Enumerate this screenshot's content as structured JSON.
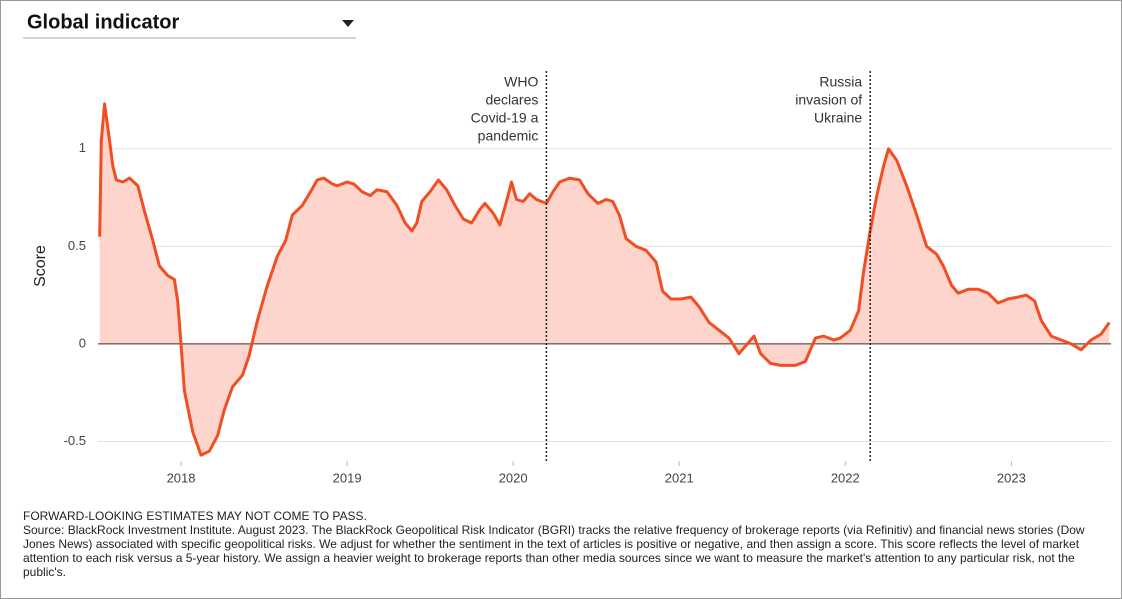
{
  "header": {
    "title": "Global indicator"
  },
  "chart_data": {
    "type": "line",
    "ylabel": "Score",
    "color": "#f04e23",
    "fill": "#fdd5cc",
    "grid": true,
    "xlim": [
      2017.5,
      2023.6
    ],
    "xticks": [
      2018,
      2019,
      2020,
      2021,
      2022,
      2023
    ],
    "ylim": [
      -0.6,
      1.45
    ],
    "yticks": [
      -0.5,
      0,
      0.5,
      1
    ],
    "x": [
      2017.51,
      2017.52,
      2017.54,
      2017.57,
      2017.59,
      2017.61,
      2017.65,
      2017.69,
      2017.74,
      2017.78,
      2017.83,
      2017.87,
      2017.92,
      2017.96,
      2017.98,
      2018.0,
      2018.02,
      2018.07,
      2018.12,
      2018.17,
      2018.22,
      2018.26,
      2018.31,
      2018.37,
      2018.41,
      2018.46,
      2018.52,
      2018.58,
      2018.63,
      2018.67,
      2018.73,
      2018.78,
      2018.82,
      2018.86,
      2018.91,
      2018.94,
      2019.0,
      2019.04,
      2019.09,
      2019.14,
      2019.18,
      2019.24,
      2019.3,
      2019.35,
      2019.39,
      2019.42,
      2019.45,
      2019.5,
      2019.55,
      2019.6,
      2019.65,
      2019.7,
      2019.75,
      2019.8,
      2019.83,
      2019.88,
      2019.92,
      2019.96,
      2019.99,
      2020.02,
      2020.06,
      2020.1,
      2020.14,
      2020.2,
      2020.24,
      2020.28,
      2020.34,
      2020.4,
      2020.45,
      2020.51,
      2020.56,
      2020.6,
      2020.64,
      2020.68,
      2020.74,
      2020.8,
      2020.86,
      2020.9,
      2020.95,
      2021.01,
      2021.07,
      2021.12,
      2021.18,
      2021.24,
      2021.3,
      2021.36,
      2021.4,
      2021.45,
      2021.49,
      2021.55,
      2021.61,
      2021.7,
      2021.76,
      2021.82,
      2021.87,
      2021.93,
      2021.97,
      2022.03,
      2022.08,
      2022.11,
      2022.15,
      2022.19,
      2022.23,
      2022.26,
      2022.31,
      2022.37,
      2022.43,
      2022.49,
      2022.55,
      2022.59,
      2022.64,
      2022.68,
      2022.74,
      2022.8,
      2022.86,
      2022.92,
      2022.98,
      2023.04,
      2023.09,
      2023.14,
      2023.18,
      2023.24,
      2023.3,
      2023.36,
      2023.42,
      2023.48,
      2023.54,
      2023.59
    ],
    "values": [
      0.55,
      1.04,
      1.23,
      1.04,
      0.91,
      0.84,
      0.83,
      0.85,
      0.81,
      0.68,
      0.53,
      0.4,
      0.35,
      0.33,
      0.22,
      0,
      -0.24,
      -0.45,
      -0.57,
      -0.55,
      -0.47,
      -0.34,
      -0.22,
      -0.16,
      -0.06,
      0.12,
      0.3,
      0.45,
      0.53,
      0.66,
      0.71,
      0.78,
      0.84,
      0.85,
      0.82,
      0.81,
      0.83,
      0.82,
      0.78,
      0.76,
      0.79,
      0.78,
      0.71,
      0.62,
      0.58,
      0.62,
      0.73,
      0.78,
      0.84,
      0.79,
      0.71,
      0.64,
      0.62,
      0.69,
      0.72,
      0.67,
      0.61,
      0.73,
      0.83,
      0.74,
      0.73,
      0.77,
      0.74,
      0.72,
      0.78,
      0.83,
      0.85,
      0.84,
      0.77,
      0.72,
      0.74,
      0.73,
      0.66,
      0.54,
      0.5,
      0.48,
      0.42,
      0.27,
      0.23,
      0.23,
      0.24,
      0.19,
      0.11,
      0.07,
      0.03,
      -0.05,
      -0.01,
      0.04,
      -0.05,
      -0.1,
      -0.11,
      -0.11,
      -0.09,
      0.03,
      0.04,
      0.02,
      0.03,
      0.07,
      0.17,
      0.37,
      0.58,
      0.76,
      0.91,
      1.0,
      0.94,
      0.81,
      0.66,
      0.5,
      0.46,
      0.4,
      0.3,
      0.26,
      0.28,
      0.28,
      0.26,
      0.21,
      0.23,
      0.24,
      0.25,
      0.22,
      0.12,
      0.04,
      0.02,
      0,
      -0.03,
      0.02,
      0.05,
      0.11
    ],
    "annotations": [
      {
        "x": 2020.2,
        "lines": [
          "WHO",
          "declares",
          "Covid-19 a",
          "pandemic"
        ]
      },
      {
        "x": 2022.15,
        "lines": [
          "Russia",
          "invasion of",
          "Ukraine"
        ]
      }
    ]
  },
  "footer": {
    "disclaimer": "FORWARD-LOOKING ESTIMATES MAY NOT COME TO PASS.",
    "source": "Source: BlackRock Investment Institute. August 2023. The BlackRock Geopolitical Risk Indicator (BGRI) tracks the relative frequency of brokerage reports (via Refinitiv) and financial news stories (Dow Jones News) associated with specific geopolitical risks. We adjust for whether the sentiment in the text of articles is positive or negative, and then assign a score. This score reflects the level of market attention to each risk versus a 5-year history. We assign a heavier weight to brokerage reports than other media sources since we want to measure the market's attention to any particular risk, not the public's."
  }
}
